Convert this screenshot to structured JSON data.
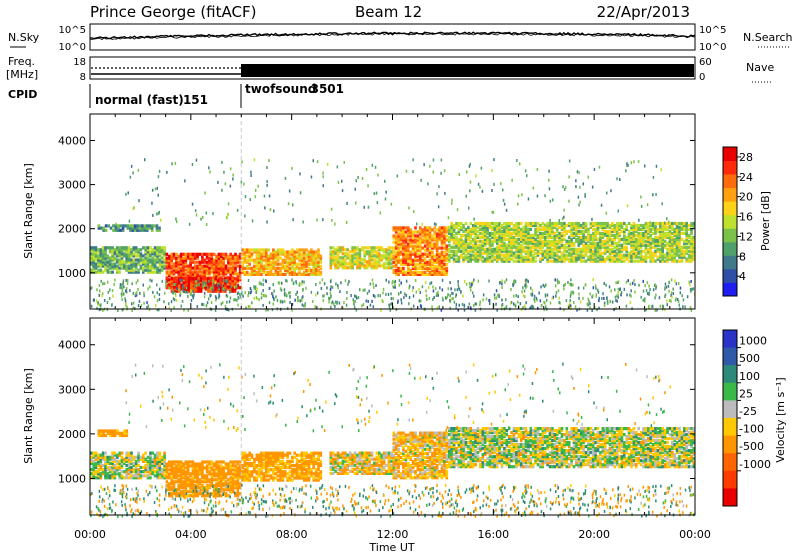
{
  "header": {
    "station": "Prince George (fitACF)",
    "beam": "Beam 12",
    "date": "22/Apr/2013"
  },
  "strip": {
    "nsky_label": "N.Sky",
    "nsearch_label": "N.Search",
    "noise_ticks": [
      "10^5",
      "10^0"
    ],
    "freq_label": "Freq.",
    "freq_unit": "[MHz]",
    "freq_ticks": [
      "18",
      "8"
    ],
    "nave_label": "Nave",
    "nave_ticks": [
      "60",
      "0"
    ],
    "cpid_label": "CPID",
    "modes": [
      {
        "name": "normal (fast)",
        "id": "151",
        "start_hour": 0
      },
      {
        "name": "twofsound",
        "id": "3501",
        "start_hour": 6
      }
    ]
  },
  "panels": {
    "range_label": "Slant Range [km]",
    "range_ticks": [
      1000,
      2000,
      3000,
      4000
    ],
    "time_label": "Time UT",
    "time_ticks": [
      "00:00",
      "04:00",
      "08:00",
      "12:00",
      "16:00",
      "20:00",
      "00:00"
    ]
  },
  "colors": {
    "power": [
      "#1e1ef0",
      "#2e4fa8",
      "#3f7a8a",
      "#4fa06a",
      "#7cc24a",
      "#bfe02c",
      "#ffd21a",
      "#ffa010",
      "#ff6a0a",
      "#ff2a0a",
      "#e80000"
    ],
    "velocity": [
      "#2a32c8",
      "#2e5aa8",
      "#2e8a78",
      "#3ab84a",
      "#bcbcbc",
      "#ffc800",
      "#ff9600",
      "#ff6400",
      "#ff3c00",
      "#e80000"
    ]
  },
  "chart_data": [
    {
      "type": "heatmap",
      "title": "Power",
      "xlabel": "Time UT",
      "ylabel": "Slant Range [km]",
      "xlim_hours": [
        0,
        24
      ],
      "ylim_km": [
        180,
        4600
      ],
      "colorbar": {
        "label": "Power [dB]",
        "ticks": [
          4,
          8,
          12,
          16,
          20,
          24,
          28
        ],
        "range": [
          0,
          30
        ]
      },
      "scatter_bands": [
        {
          "t0": 0.0,
          "t1": 3.0,
          "r0": 1050,
          "r1": 1650,
          "value": 11
        },
        {
          "t0": 3.0,
          "t1": 6.0,
          "r0": 700,
          "r1": 1500,
          "value": 26
        },
        {
          "t0": 3.2,
          "t1": 5.8,
          "r0": 620,
          "r1": 950,
          "value": 28
        },
        {
          "t0": 6.0,
          "t1": 9.2,
          "r0": 1000,
          "r1": 1600,
          "value": 20
        },
        {
          "t0": 9.5,
          "t1": 12.0,
          "r0": 1150,
          "r1": 1650,
          "value": 16
        },
        {
          "t0": 12.0,
          "t1": 14.2,
          "r0": 1000,
          "r1": 2100,
          "value": 22
        },
        {
          "t0": 14.2,
          "t1": 24.0,
          "r0": 1300,
          "r1": 2200,
          "value": 14
        },
        {
          "t0": 0.3,
          "t1": 2.8,
          "r0": 2000,
          "r1": 2150,
          "value": 8
        }
      ]
    },
    {
      "type": "heatmap",
      "title": "Velocity",
      "xlabel": "Time UT",
      "ylabel": "Slant Range [km]",
      "xlim_hours": [
        0,
        24
      ],
      "ylim_km": [
        180,
        4600
      ],
      "colorbar": {
        "label": "Velocity [m s⁻¹]",
        "ticks": [
          1000,
          500,
          100,
          25,
          -25,
          -100,
          -500,
          -1000
        ]
      },
      "scatter_bands": [
        {
          "t0": 0.0,
          "t1": 3.0,
          "r0": 1050,
          "r1": 1650,
          "value": 0
        },
        {
          "t0": 3.0,
          "t1": 6.0,
          "r0": 650,
          "r1": 1450,
          "value": -200
        },
        {
          "t0": 6.0,
          "t1": 9.2,
          "r0": 1000,
          "r1": 1650,
          "value": -150
        },
        {
          "t0": 9.5,
          "t1": 12.0,
          "r0": 1150,
          "r1": 1650,
          "value": -60
        },
        {
          "t0": 12.0,
          "t1": 14.2,
          "r0": 1050,
          "r1": 2100,
          "value": -80
        },
        {
          "t0": 14.2,
          "t1": 24.0,
          "r0": 1300,
          "r1": 2200,
          "value": 0
        },
        {
          "t0": 0.3,
          "t1": 1.5,
          "r0": 2000,
          "r1": 2150,
          "value": -150
        }
      ]
    }
  ]
}
